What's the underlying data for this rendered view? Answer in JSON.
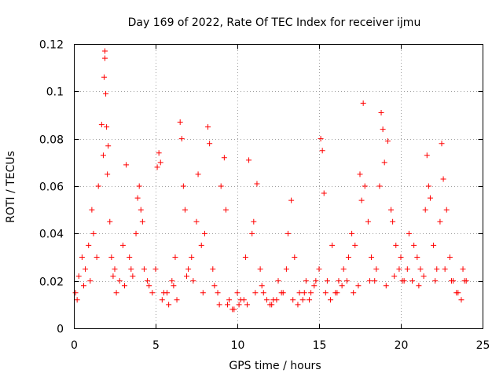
{
  "chart_data": {
    "type": "scatter",
    "title": "Day 169 of 2022, Rate Of TEC Index for receiver ijmu",
    "xlabel": "GPS time / hours",
    "ylabel": "ROTI / TECUs",
    "xlim": [
      0,
      25
    ],
    "ylim": [
      0,
      0.12
    ],
    "x_ticks": [
      0,
      5,
      10,
      15,
      20,
      25
    ],
    "x_tick_labels": [
      "0",
      "5",
      "10",
      "15",
      "20",
      "25"
    ],
    "y_ticks": [
      0,
      0.02,
      0.04,
      0.06,
      0.08,
      0.1,
      0.12
    ],
    "y_tick_labels": [
      "0",
      "0.02",
      "0.04",
      "0.06",
      "0.08",
      "0.1",
      "0.12"
    ],
    "grid": true,
    "marker": "+",
    "series": [
      {
        "name": "ROTI",
        "color": "#ff0000",
        "x": [
          0.1,
          0.3,
          0.5,
          0.7,
          0.9,
          1.1,
          1.2,
          1.5,
          1.7,
          1.8,
          1.85,
          1.9,
          1.9,
          1.95,
          2.0,
          2.05,
          2.1,
          2.2,
          2.3,
          2.5,
          2.8,
          3.0,
          3.2,
          3.4,
          3.5,
          3.8,
          3.9,
          4.0,
          4.1,
          4.2,
          4.5,
          4.8,
          5.0,
          5.1,
          5.2,
          5.3,
          5.5,
          5.8,
          6.0,
          6.2,
          6.5,
          6.6,
          6.7,
          6.8,
          7.0,
          7.2,
          7.5,
          7.6,
          7.8,
          8.0,
          8.2,
          8.3,
          8.5,
          8.8,
          9.0,
          9.2,
          9.3,
          9.5,
          9.8,
          10.0,
          10.2,
          10.5,
          10.7,
          10.9,
          11.0,
          11.2,
          11.4,
          11.6,
          12.0,
          12.2,
          12.5,
          12.8,
          13.0,
          13.1,
          13.3,
          13.5,
          13.8,
          14.0,
          14.2,
          14.5,
          14.8,
          15.0,
          15.1,
          15.2,
          15.3,
          15.5,
          15.8,
          16.0,
          16.2,
          16.5,
          16.8,
          17.0,
          17.2,
          17.5,
          17.6,
          17.7,
          17.8,
          18.0,
          18.2,
          18.5,
          18.7,
          18.8,
          18.9,
          19.0,
          19.2,
          19.4,
          19.5,
          19.7,
          19.9,
          20.0,
          20.2,
          20.5,
          20.8,
          21.0,
          21.2,
          21.5,
          21.6,
          21.7,
          21.8,
          22.0,
          22.2,
          22.4,
          22.5,
          22.6,
          22.8,
          23.0,
          23.2,
          23.5,
          23.8,
          24.0,
          0.2,
          0.6,
          1.0,
          1.4,
          2.4,
          2.6,
          3.1,
          3.6,
          4.3,
          4.6,
          5.4,
          5.7,
          6.1,
          6.3,
          6.9,
          7.3,
          7.9,
          8.6,
          8.9,
          9.4,
          9.7,
          10.1,
          10.4,
          10.6,
          11.1,
          11.5,
          11.8,
          12.1,
          12.4,
          12.7,
          13.4,
          13.7,
          14.1,
          14.4,
          14.7,
          15.4,
          15.7,
          16.1,
          16.4,
          16.7,
          17.1,
          17.4,
          18.1,
          18.4,
          19.1,
          19.6,
          20.1,
          20.4,
          20.7,
          21.1,
          21.4,
          22.1,
          22.7,
          23.1,
          23.4,
          23.7,
          23.9
        ],
        "y": [
          0.015,
          0.022,
          0.03,
          0.025,
          0.035,
          0.05,
          0.04,
          0.06,
          0.086,
          0.073,
          0.106,
          0.117,
          0.114,
          0.099,
          0.085,
          0.065,
          0.077,
          0.045,
          0.03,
          0.025,
          0.02,
          0.035,
          0.069,
          0.03,
          0.025,
          0.04,
          0.055,
          0.06,
          0.05,
          0.045,
          0.02,
          0.015,
          0.025,
          0.068,
          0.074,
          0.07,
          0.015,
          0.01,
          0.02,
          0.03,
          0.087,
          0.08,
          0.06,
          0.05,
          0.025,
          0.03,
          0.045,
          0.065,
          0.035,
          0.04,
          0.085,
          0.078,
          0.025,
          0.015,
          0.06,
          0.072,
          0.05,
          0.012,
          0.008,
          0.015,
          0.012,
          0.03,
          0.071,
          0.04,
          0.045,
          0.061,
          0.025,
          0.015,
          0.01,
          0.012,
          0.02,
          0.015,
          0.025,
          0.04,
          0.054,
          0.03,
          0.015,
          0.012,
          0.02,
          0.015,
          0.02,
          0.025,
          0.08,
          0.075,
          0.057,
          0.02,
          0.035,
          0.015,
          0.02,
          0.025,
          0.03,
          0.04,
          0.035,
          0.065,
          0.054,
          0.095,
          0.06,
          0.045,
          0.03,
          0.025,
          0.06,
          0.091,
          0.084,
          0.07,
          0.079,
          0.05,
          0.045,
          0.035,
          0.025,
          0.03,
          0.02,
          0.04,
          0.035,
          0.03,
          0.025,
          0.05,
          0.073,
          0.06,
          0.055,
          0.035,
          0.025,
          0.045,
          0.078,
          0.063,
          0.05,
          0.03,
          0.02,
          0.015,
          0.025,
          0.02,
          0.012,
          0.018,
          0.02,
          0.03,
          0.022,
          0.015,
          0.018,
          0.022,
          0.025,
          0.018,
          0.012,
          0.015,
          0.018,
          0.012,
          0.022,
          0.02,
          0.015,
          0.018,
          0.01,
          0.01,
          0.008,
          0.01,
          0.012,
          0.01,
          0.015,
          0.018,
          0.012,
          0.01,
          0.012,
          0.015,
          0.012,
          0.01,
          0.015,
          0.012,
          0.018,
          0.015,
          0.012,
          0.015,
          0.018,
          0.02,
          0.015,
          0.018,
          0.02,
          0.02,
          0.018,
          0.022,
          0.02,
          0.025,
          0.02,
          0.018,
          0.022,
          0.02,
          0.025,
          0.02,
          0.015,
          0.012,
          0.02
        ]
      }
    ]
  }
}
